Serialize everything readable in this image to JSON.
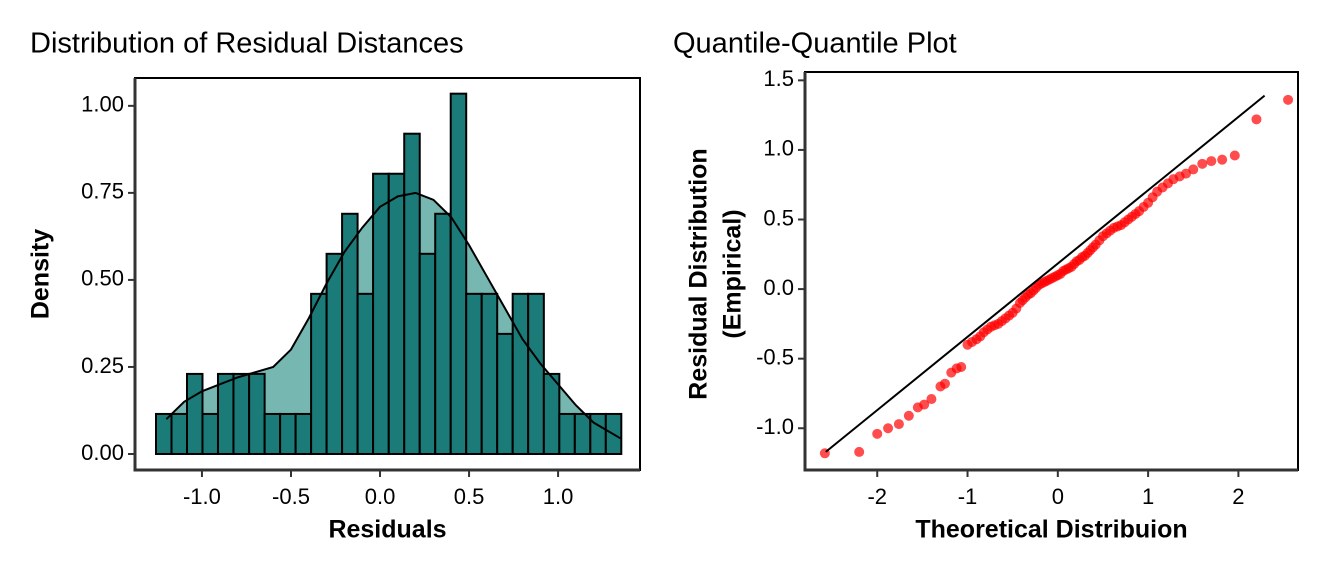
{
  "chart_data": [
    {
      "type": "histogram",
      "title": "Distribution of Residual Distances",
      "x_label": "Residuals",
      "y_label": "Density",
      "bins": [
        -1.258,
        -1.171,
        -1.084,
        -0.997,
        -0.91,
        -0.823,
        -0.735,
        -0.648,
        -0.561,
        -0.474,
        -0.387,
        -0.3,
        -0.213,
        -0.126,
        -0.039,
        0.049,
        0.136,
        0.223,
        0.31,
        0.397,
        0.484,
        0.571,
        0.658,
        0.745,
        0.832,
        0.92,
        1.007,
        1.094,
        1.181,
        1.268,
        1.355
      ],
      "values": [
        0.115,
        0.115,
        0.23,
        0.115,
        0.23,
        0.23,
        0.23,
        0.115,
        0.115,
        0.115,
        0.46,
        0.575,
        0.69,
        0.46,
        0.805,
        0.805,
        0.92,
        0.575,
        0.69,
        1.035,
        0.46,
        0.46,
        0.345,
        0.46,
        0.46,
        0.23,
        0.115,
        0.115,
        0.115,
        0.115
      ],
      "color": "#1b7b78",
      "density_curve": {
        "color": "#6fb3ae",
        "x": [
          -1.2,
          -1.1,
          -1.0,
          -0.9,
          -0.8,
          -0.7,
          -0.6,
          -0.5,
          -0.4,
          -0.3,
          -0.2,
          -0.1,
          0.0,
          0.1,
          0.2,
          0.3,
          0.4,
          0.5,
          0.6,
          0.7,
          0.8,
          0.9,
          1.0,
          1.1,
          1.2,
          1.35
        ],
        "y": [
          0.1,
          0.15,
          0.18,
          0.2,
          0.22,
          0.235,
          0.25,
          0.3,
          0.39,
          0.49,
          0.58,
          0.65,
          0.71,
          0.74,
          0.75,
          0.73,
          0.68,
          0.6,
          0.51,
          0.42,
          0.33,
          0.26,
          0.2,
          0.14,
          0.09,
          0.045
        ]
      },
      "xlim": [
        -1.376,
        1.46
      ],
      "ylim": [
        -0.046,
        1.08
      ],
      "xticks": [
        {
          "value": -1.0,
          "label": "-1.0"
        },
        {
          "value": -0.5,
          "label": "-0.5"
        },
        {
          "value": 0.0,
          "label": "0.0"
        },
        {
          "value": 0.5,
          "label": "0.5"
        },
        {
          "value": 1.0,
          "label": "1.0"
        }
      ],
      "yticks": [
        {
          "value": 0,
          "label": "0.00"
        },
        {
          "value": 0.25,
          "label": "0.25"
        },
        {
          "value": 0.5,
          "label": "0.50"
        },
        {
          "value": 0.75,
          "label": "0.75"
        },
        {
          "value": 1.0,
          "label": "1.00"
        }
      ]
    },
    {
      "type": "scatter",
      "title": "Quantile-Quantile Plot",
      "x_label": "Theoretical Distribuion",
      "y_label": [
        "Residual Distribution",
        "(Empirical)"
      ],
      "color": "#ff0000",
      "x": [
        -2.58,
        -2.2,
        -2.0,
        -1.88,
        -1.76,
        -1.65,
        -1.55,
        -1.48,
        -1.4,
        -1.3,
        -1.25,
        -1.18,
        -1.12,
        -1.07,
        -1.0,
        -0.95,
        -0.9,
        -0.86,
        -0.82,
        -0.78,
        -0.74,
        -0.7,
        -0.66,
        -0.62,
        -0.58,
        -0.54,
        -0.5,
        -0.46,
        -0.42,
        -0.39,
        -0.36,
        -0.33,
        -0.3,
        -0.27,
        -0.24,
        -0.21,
        -0.18,
        -0.15,
        -0.12,
        -0.09,
        -0.06,
        -0.03,
        0,
        0.03,
        0.06,
        0.09,
        0.12,
        0.15,
        0.18,
        0.21,
        0.24,
        0.27,
        0.3,
        0.33,
        0.36,
        0.39,
        0.42,
        0.46,
        0.5,
        0.54,
        0.58,
        0.62,
        0.66,
        0.7,
        0.74,
        0.78,
        0.82,
        0.86,
        0.9,
        0.95,
        1.0,
        1.05,
        1.1,
        1.16,
        1.22,
        1.28,
        1.35,
        1.42,
        1.5,
        1.6,
        1.7,
        1.82,
        1.96,
        2.2,
        2.55
      ],
      "y": [
        -1.18,
        -1.17,
        -1.04,
        -1.0,
        -0.97,
        -0.91,
        -0.85,
        -0.83,
        -0.79,
        -0.7,
        -0.68,
        -0.6,
        -0.57,
        -0.56,
        -0.4,
        -0.38,
        -0.36,
        -0.34,
        -0.31,
        -0.29,
        -0.27,
        -0.26,
        -0.25,
        -0.23,
        -0.21,
        -0.19,
        -0.17,
        -0.14,
        -0.1,
        -0.08,
        -0.06,
        -0.04,
        -0.03,
        -0.01,
        0.01,
        0.03,
        0.04,
        0.05,
        0.06,
        0.07,
        0.08,
        0.09,
        0.1,
        0.11,
        0.13,
        0.14,
        0.15,
        0.16,
        0.18,
        0.2,
        0.21,
        0.23,
        0.24,
        0.26,
        0.28,
        0.3,
        0.32,
        0.35,
        0.38,
        0.4,
        0.42,
        0.44,
        0.45,
        0.46,
        0.48,
        0.5,
        0.52,
        0.54,
        0.56,
        0.59,
        0.62,
        0.66,
        0.7,
        0.73,
        0.76,
        0.79,
        0.81,
        0.83,
        0.86,
        0.9,
        0.92,
        0.93,
        0.96,
        1.22,
        1.36
      ],
      "reference_line": {
        "color": "#000000",
        "x": [
          -2.57,
          2.29
        ],
        "y": [
          -1.17,
          1.39
        ]
      },
      "xlim": [
        -2.8,
        2.66
      ],
      "ylim": [
        -1.3,
        1.56
      ],
      "xticks": [
        -2,
        -1,
        0,
        1,
        2
      ],
      "yticks": [
        {
          "value": -1.0,
          "label": "-1.0"
        },
        {
          "value": -0.5,
          "label": "-0.5"
        },
        {
          "value": 0.0,
          "label": "0.0"
        },
        {
          "value": 0.5,
          "label": "0.5"
        },
        {
          "value": 1.0,
          "label": "1.0"
        },
        1.5
      ]
    }
  ]
}
